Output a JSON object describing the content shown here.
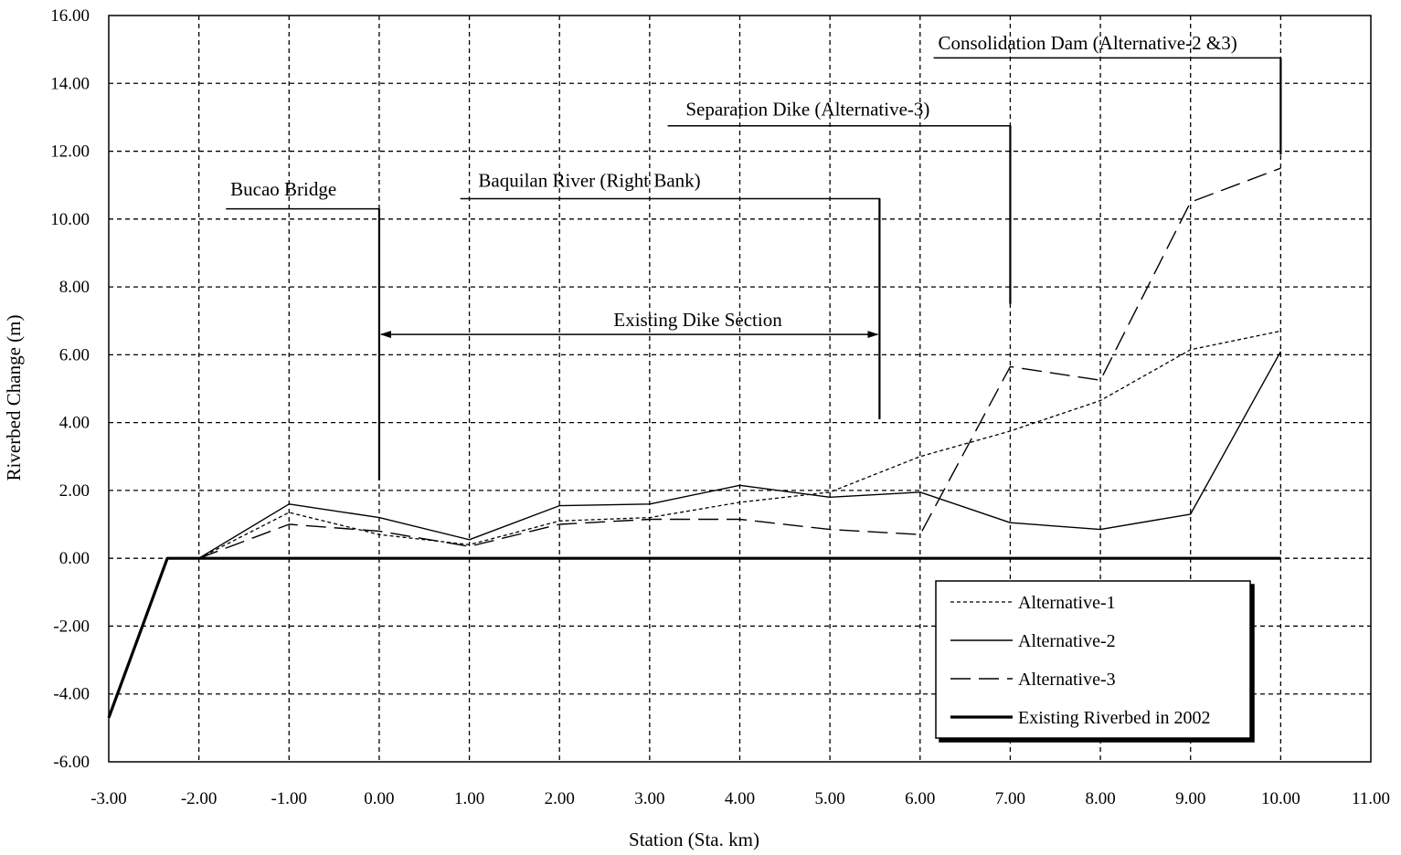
{
  "chart_data": {
    "type": "line",
    "xlabel": "Station (Sta. km)",
    "ylabel": "Riverbed Change (m)",
    "xlim": [
      -3,
      11
    ],
    "ylim": [
      -6,
      16
    ],
    "grid": true,
    "x_ticks": [
      -3,
      -2,
      -1,
      0,
      1,
      2,
      3,
      4,
      5,
      6,
      7,
      8,
      9,
      10,
      11
    ],
    "x_tick_labels": [
      "-3.00",
      "-2.00",
      "-1.00",
      "0.00",
      "1.00",
      "2.00",
      "3.00",
      "4.00",
      "5.00",
      "6.00",
      "7.00",
      "8.00",
      "9.00",
      "10.00",
      "11.00"
    ],
    "y_ticks": [
      -6,
      -4,
      -2,
      0,
      2,
      4,
      6,
      8,
      10,
      12,
      14,
      16
    ],
    "y_tick_labels": [
      "-6.00",
      "-4.00",
      "-2.00",
      "0.00",
      "2.00",
      "4.00",
      "6.00",
      "8.00",
      "10.00",
      "12.00",
      "14.00",
      "16.00"
    ],
    "legend_position": "bottom-right",
    "series": [
      {
        "name": "Alternative-1",
        "style": "dotted",
        "color": "#000000",
        "points": [
          [
            -2,
            0
          ],
          [
            -1,
            1.35
          ],
          [
            0,
            0.7
          ],
          [
            1,
            0.4
          ],
          [
            2,
            1.1
          ],
          [
            3,
            1.2
          ],
          [
            4,
            1.65
          ],
          [
            5,
            1.95
          ],
          [
            6,
            3.0
          ],
          [
            7,
            3.75
          ],
          [
            8,
            4.65
          ],
          [
            9,
            6.15
          ],
          [
            10,
            6.7
          ]
        ]
      },
      {
        "name": "Alternative-2",
        "style": "solid",
        "color": "#000000",
        "points": [
          [
            -2,
            0
          ],
          [
            -1,
            1.6
          ],
          [
            0,
            1.2
          ],
          [
            1,
            0.55
          ],
          [
            2,
            1.55
          ],
          [
            3,
            1.6
          ],
          [
            4,
            2.15
          ],
          [
            5,
            1.8
          ],
          [
            6,
            1.95
          ],
          [
            7,
            1.05
          ],
          [
            8,
            0.85
          ],
          [
            9,
            1.3
          ],
          [
            10,
            6.1
          ]
        ]
      },
      {
        "name": "Alternative-3",
        "style": "long-dash",
        "color": "#000000",
        "points": [
          [
            -2,
            0
          ],
          [
            -1,
            1.0
          ],
          [
            0,
            0.8
          ],
          [
            1,
            0.35
          ],
          [
            2,
            1.0
          ],
          [
            3,
            1.15
          ],
          [
            4,
            1.15
          ],
          [
            5,
            0.85
          ],
          [
            6,
            0.7
          ],
          [
            7,
            5.65
          ],
          [
            8,
            5.25
          ],
          [
            9,
            10.5
          ],
          [
            10,
            11.5
          ]
        ]
      },
      {
        "name": "Existing Riverbed in 2002",
        "style": "thick",
        "color": "#000000",
        "points": [
          [
            -3,
            -4.7
          ],
          [
            -2.35,
            0
          ],
          [
            10,
            0
          ]
        ]
      }
    ],
    "annotations": [
      {
        "text": "Bucao Bridge",
        "text_at": [
          -1.65,
          10.7
        ],
        "leader": [
          [
            -1.7,
            10.3
          ],
          [
            0,
            10.3
          ],
          [
            0,
            2.3
          ]
        ]
      },
      {
        "text": "Baquilan River (Right Bank)",
        "text_at": [
          1.1,
          10.95
        ],
        "leader": [
          [
            0.9,
            10.6
          ],
          [
            5.55,
            10.6
          ],
          [
            5.55,
            4.1
          ]
        ]
      },
      {
        "text": "Separation Dike (Alternative-3)",
        "text_at": [
          3.4,
          13.05
        ],
        "leader": [
          [
            3.2,
            12.75
          ],
          [
            7.0,
            12.75
          ],
          [
            7.0,
            7.5
          ]
        ]
      },
      {
        "text": "Consolidation Dam (Alternative-2 &3)",
        "text_at": [
          6.2,
          15.0
        ],
        "leader": [
          [
            6.15,
            14.75
          ],
          [
            10.0,
            14.75
          ],
          [
            10.0,
            11.9
          ]
        ]
      },
      {
        "text": "Existing Dike Section",
        "text_at": [
          2.6,
          6.85
        ],
        "arrow": [
          [
            0,
            6.6
          ],
          [
            5.55,
            6.6
          ]
        ]
      }
    ]
  }
}
